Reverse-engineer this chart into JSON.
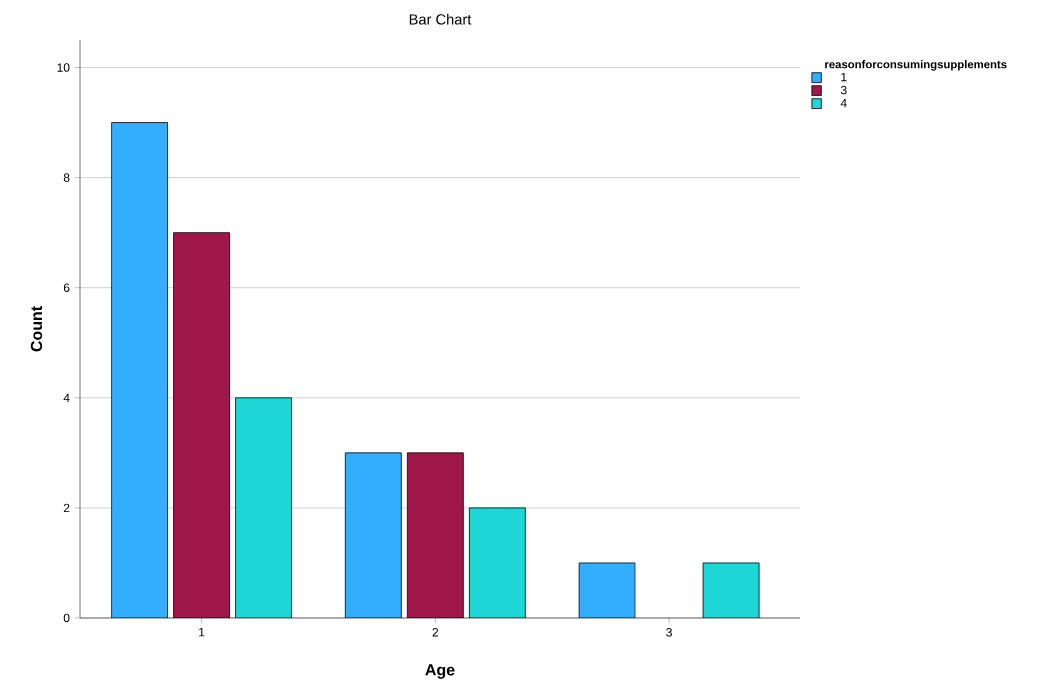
{
  "chart_data": {
    "type": "bar",
    "title": "Bar Chart",
    "xlabel": "Age",
    "ylabel": "Count",
    "legend_title": "reasonforconsumingsupplements",
    "categories": [
      "1",
      "2",
      "3"
    ],
    "series": [
      {
        "name": "1",
        "color": "#33adff",
        "values": [
          9,
          3,
          1
        ]
      },
      {
        "name": "3",
        "color": "#a0174a",
        "values": [
          7,
          3,
          null
        ]
      },
      {
        "name": "4",
        "color": "#1fd6d6",
        "values": [
          4,
          2,
          1
        ]
      }
    ],
    "ylim": [
      0,
      10.5
    ],
    "yticks": [
      0,
      2,
      4,
      6,
      8,
      10
    ],
    "grid": "y",
    "legend": "top right"
  }
}
